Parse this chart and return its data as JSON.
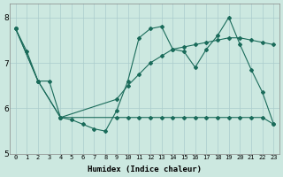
{
  "xlabel": "Humidex (Indice chaleur)",
  "bg_color": "#cce8e0",
  "grid_color": "#aacccc",
  "line_color": "#1a6b5a",
  "xlim": [
    -0.5,
    23.5
  ],
  "ylim": [
    5,
    8.3
  ],
  "yticks": [
    5,
    6,
    7,
    8
  ],
  "xtick_labels": [
    "0",
    "1",
    "2",
    "3",
    "4",
    "5",
    "6",
    "7",
    "8",
    "9",
    "10",
    "11",
    "12",
    "13",
    "14",
    "15",
    "16",
    "17",
    "18",
    "19",
    "20",
    "21",
    "22",
    "23"
  ],
  "series1": {
    "x": [
      0,
      1,
      2,
      3,
      4,
      5,
      6,
      7,
      8,
      9,
      10,
      11,
      12,
      13,
      14,
      15,
      16,
      17,
      18,
      19,
      20,
      21,
      22,
      23
    ],
    "y": [
      7.75,
      7.25,
      6.6,
      6.6,
      5.8,
      5.75,
      5.65,
      5.55,
      5.5,
      5.95,
      6.6,
      7.55,
      7.75,
      7.8,
      7.3,
      7.25,
      6.9,
      7.3,
      7.6,
      8.0,
      7.4,
      6.85,
      6.35,
      5.65
    ]
  },
  "series2": {
    "x": [
      0,
      2,
      4,
      9,
      10,
      11,
      12,
      13,
      14,
      15,
      16,
      17,
      18,
      19,
      20,
      21,
      22,
      23
    ],
    "y": [
      7.75,
      6.6,
      5.8,
      6.2,
      6.5,
      6.75,
      7.0,
      7.15,
      7.3,
      7.35,
      7.4,
      7.45,
      7.5,
      7.55,
      7.55,
      7.5,
      7.45,
      7.4
    ]
  },
  "series3": {
    "x": [
      0,
      2,
      4,
      9,
      10,
      11,
      12,
      13,
      14,
      15,
      16,
      17,
      18,
      19,
      20,
      21,
      22,
      23
    ],
    "y": [
      7.75,
      6.6,
      5.8,
      5.8,
      5.8,
      5.8,
      5.8,
      5.8,
      5.8,
      5.8,
      5.8,
      5.8,
      5.8,
      5.8,
      5.8,
      5.8,
      5.8,
      5.65
    ]
  }
}
